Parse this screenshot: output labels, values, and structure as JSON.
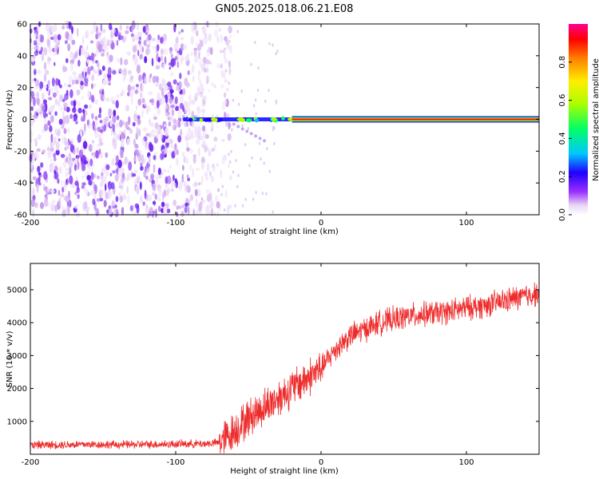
{
  "title": "GN05.2025.018.06.21.E08",
  "chart_data": [
    {
      "type": "heatmap",
      "xlabel": "Height of straight line (km)",
      "ylabel": "Frequency (Hz)",
      "xlim": [
        -200,
        150
      ],
      "ylim": [
        -60,
        60
      ],
      "xticks": [
        -200,
        -100,
        0,
        100
      ],
      "yticks": [
        -60,
        -40,
        -20,
        0,
        20,
        40,
        60
      ],
      "colorbar": {
        "label": "Normalized spectral amplitude",
        "range": [
          0.0,
          1.0
        ],
        "ticks": [
          0.0,
          0.2,
          0.4,
          0.6,
          0.8
        ]
      },
      "features": {
        "noise_region_x": [
          -200,
          -70
        ],
        "noise_intensity": 0.25,
        "carrier_frequency_hz": 0,
        "carrier_start_x": -95,
        "carrier_strong_from_x": -20,
        "carrier_peak_amplitude": 0.95
      }
    },
    {
      "type": "line",
      "xlabel": "Height of straight line (km)",
      "ylabel": "SNR (10 * v/v)",
      "xlim": [
        -200,
        150
      ],
      "ylim": [
        0,
        5800
      ],
      "xticks": [
        -200,
        -100,
        0,
        100
      ],
      "yticks": [
        1000,
        2000,
        3000,
        4000,
        5000
      ],
      "series": [
        {
          "color": "#ee2c2c",
          "x": [
            -200,
            -180,
            -160,
            -140,
            -120,
            -100,
            -80,
            -70,
            -60,
            -50,
            -40,
            -30,
            -20,
            -10,
            0,
            10,
            20,
            30,
            40,
            50,
            60,
            70,
            80,
            90,
            100,
            110,
            120,
            130,
            140,
            150
          ],
          "y": [
            280,
            290,
            300,
            290,
            300,
            310,
            320,
            350,
            700,
            1100,
            1400,
            1700,
            2000,
            2300,
            2600,
            3200,
            3600,
            3800,
            4000,
            4100,
            4200,
            4250,
            4300,
            4350,
            4450,
            4500,
            4600,
            4700,
            4800,
            4900
          ]
        }
      ]
    }
  ]
}
